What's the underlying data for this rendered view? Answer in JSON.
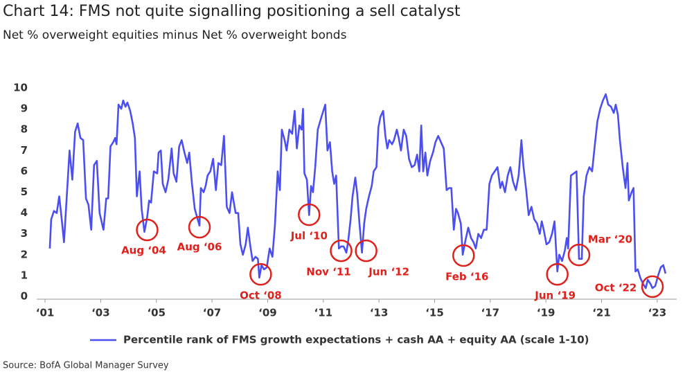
{
  "chart_data": {
    "type": "line",
    "title": "Chart 14: FMS not quite signalling positioning a sell catalyst",
    "subtitle": "Net % overweight equities minus Net % overweight bonds",
    "source": "Source: BofA Global Manager Survey",
    "xlim": [
      2000.7,
      2023.7
    ],
    "ylim": [
      0,
      10
    ],
    "yticks": [
      0,
      1,
      2,
      3,
      4,
      5,
      6,
      7,
      8,
      9,
      10
    ],
    "xticks": [
      {
        "value": 2001,
        "label": "‘01"
      },
      {
        "value": 2003,
        "label": "‘03"
      },
      {
        "value": 2005,
        "label": "‘05"
      },
      {
        "value": 2007,
        "label": "‘07"
      },
      {
        "value": 2009,
        "label": "‘09"
      },
      {
        "value": 2011,
        "label": "‘11"
      },
      {
        "value": 2013,
        "label": "‘13"
      },
      {
        "value": 2015,
        "label": "‘15"
      },
      {
        "value": 2017,
        "label": "‘17"
      },
      {
        "value": 2019,
        "label": "‘19"
      },
      {
        "value": 2021,
        "label": "‘21"
      },
      {
        "value": 2023,
        "label": "‘23"
      }
    ],
    "grid": false,
    "legend": "bottom",
    "x": [
      2001.17,
      2001.22,
      2001.32,
      2001.42,
      2001.51,
      2001.59,
      2001.68,
      2001.78,
      2001.88,
      2001.98,
      2002.08,
      2002.17,
      2002.27,
      2002.37,
      2002.47,
      2002.56,
      2002.66,
      2002.76,
      2002.86,
      2002.96,
      2003.1,
      2003.2,
      2003.27,
      2003.35,
      2003.45,
      2003.52,
      2003.57,
      2003.64,
      2003.74,
      2003.81,
      2003.89,
      2003.96,
      2004.06,
      2004.15,
      2004.23,
      2004.3,
      2004.4,
      2004.47,
      2004.57,
      2004.67,
      2004.74,
      2004.81,
      2004.91,
      2005.03,
      2005.08,
      2005.16,
      2005.23,
      2005.33,
      2005.43,
      2005.55,
      2005.62,
      2005.72,
      2005.82,
      2005.91,
      2006.01,
      2006.11,
      2006.18,
      2006.28,
      2006.38,
      2006.55,
      2006.6,
      2006.7,
      2006.77,
      2006.84,
      2006.94,
      2007.04,
      2007.14,
      2007.23,
      2007.33,
      2007.38,
      2007.43,
      2007.53,
      2007.63,
      2007.72,
      2007.85,
      2007.94,
      2008.02,
      2008.11,
      2008.21,
      2008.29,
      2008.38,
      2008.46,
      2008.56,
      2008.65,
      2008.7,
      2008.78,
      2008.87,
      2008.97,
      2009.07,
      2009.17,
      2009.26,
      2009.36,
      2009.44,
      2009.51,
      2009.61,
      2009.68,
      2009.78,
      2009.88,
      2009.97,
      2010.05,
      2010.14,
      2010.22,
      2010.27,
      2010.32,
      2010.41,
      2010.49,
      2010.56,
      2010.63,
      2010.71,
      2010.8,
      2010.93,
      2011.07,
      2011.15,
      2011.24,
      2011.32,
      2011.39,
      2011.46,
      2011.56,
      2011.64,
      2011.73,
      2011.83,
      2011.9,
      2011.98,
      2012.05,
      2012.15,
      2012.22,
      2012.3,
      2012.39,
      2012.47,
      2012.54,
      2012.64,
      2012.74,
      2012.81,
      2012.91,
      2012.98,
      2013.05,
      2013.15,
      2013.23,
      2013.3,
      2013.37,
      2013.47,
      2013.54,
      2013.64,
      2013.71,
      2013.79,
      2013.89,
      2013.98,
      2014.08,
      2014.18,
      2014.28,
      2014.37,
      2014.45,
      2014.52,
      2014.59,
      2014.67,
      2014.74,
      2014.84,
      2014.94,
      2015.03,
      2015.13,
      2015.23,
      2015.33,
      2015.43,
      2015.52,
      2015.6,
      2015.69,
      2015.77,
      2015.84,
      2015.94,
      2016.01,
      2016.11,
      2016.21,
      2016.31,
      2016.4,
      2016.48,
      2016.57,
      2016.67,
      2016.77,
      2016.87,
      2016.97,
      2017.06,
      2017.16,
      2017.26,
      2017.36,
      2017.43,
      2017.53,
      2017.63,
      2017.72,
      2017.82,
      2017.92,
      2018.02,
      2018.12,
      2018.19,
      2018.29,
      2018.38,
      2018.48,
      2018.58,
      2018.68,
      2018.78,
      2018.85,
      2018.92,
      2019.02,
      2019.12,
      2019.22,
      2019.31,
      2019.41,
      2019.48,
      2019.58,
      2019.68,
      2019.75,
      2019.8,
      2019.9,
      2020.0,
      2020.1,
      2020.19,
      2020.29,
      2020.36,
      2020.46,
      2020.56,
      2020.66,
      2020.76,
      2020.85,
      2020.95,
      2021.05,
      2021.15,
      2021.24,
      2021.34,
      2021.44,
      2021.51,
      2021.59,
      2021.66,
      2021.76,
      2021.86,
      2021.93,
      2021.98,
      2022.08,
      2022.15,
      2022.22,
      2022.3,
      2022.39,
      2022.49,
      2022.59,
      2022.66,
      2022.76,
      2022.83,
      2022.93,
      2023.03,
      2023.13,
      2023.22,
      2023.3
    ],
    "series": [
      {
        "name": "Percentile rank of FMS growth expectations + cash AA + equity AA (scale 1-10)",
        "color": "#4b4ef0",
        "values": [
          2.3,
          3.7,
          4.1,
          4.0,
          4.8,
          3.8,
          2.6,
          4.8,
          7.0,
          5.6,
          7.9,
          8.3,
          7.6,
          7.5,
          4.7,
          4.4,
          3.2,
          6.3,
          6.5,
          4.0,
          3.2,
          4.7,
          4.7,
          7.2,
          7.4,
          7.6,
          7.3,
          9.2,
          9.0,
          9.4,
          9.1,
          9.3,
          8.9,
          8.3,
          7.6,
          4.8,
          6.0,
          4.2,
          3.1,
          3.8,
          4.6,
          4.5,
          6.0,
          5.9,
          6.9,
          7.0,
          5.4,
          5.0,
          5.6,
          7.1,
          5.9,
          5.5,
          7.2,
          7.5,
          6.9,
          6.4,
          6.9,
          5.4,
          4.2,
          3.4,
          5.2,
          5.0,
          5.3,
          5.8,
          6.0,
          6.6,
          5.1,
          6.4,
          6.3,
          7.0,
          7.7,
          4.3,
          4.0,
          5.0,
          4.0,
          4.0,
          2.5,
          2.0,
          2.5,
          3.3,
          2.4,
          1.7,
          1.9,
          1.8,
          0.9,
          1.5,
          1.3,
          1.4,
          2.3,
          1.9,
          3.4,
          6.0,
          5.1,
          8.0,
          7.5,
          7.0,
          8.0,
          7.8,
          8.9,
          7.1,
          8.2,
          8.0,
          9.0,
          5.9,
          5.6,
          3.9,
          5.3,
          5.0,
          6.2,
          8.0,
          8.6,
          9.2,
          7.0,
          7.4,
          6.0,
          5.4,
          5.8,
          2.3,
          2.4,
          2.4,
          2.1,
          2.7,
          3.7,
          4.8,
          5.7,
          4.9,
          3.5,
          2.1,
          3.5,
          4.2,
          4.8,
          5.3,
          6.0,
          6.2,
          8.1,
          8.6,
          8.9,
          7.7,
          7.1,
          7.5,
          7.3,
          7.5,
          8.0,
          7.6,
          7.0,
          8.0,
          7.7,
          6.6,
          6.2,
          6.3,
          6.8,
          6.0,
          8.2,
          6.0,
          6.9,
          5.8,
          6.5,
          6.9,
          7.4,
          7.7,
          7.4,
          7.1,
          5.1,
          5.2,
          5.2,
          3.2,
          4.2,
          4.0,
          3.5,
          2.0,
          2.7,
          3.3,
          2.8,
          2.6,
          2.3,
          3.0,
          2.8,
          3.2,
          3.2,
          5.4,
          5.8,
          6.0,
          6.2,
          5.2,
          5.5,
          5.0,
          5.8,
          6.2,
          5.5,
          5.1,
          5.8,
          7.5,
          6.3,
          5.1,
          3.9,
          4.3,
          3.7,
          3.5,
          3.0,
          3.6,
          3.2,
          2.5,
          2.6,
          3.0,
          3.6,
          1.2,
          2.0,
          1.7,
          2.2,
          2.8,
          2.3,
          5.8,
          5.9,
          6.0,
          1.8,
          1.8,
          4.8,
          5.8,
          6.2,
          6.0,
          7.3,
          8.4,
          9.0,
          9.4,
          9.7,
          9.2,
          9.1,
          8.8,
          9.2,
          8.7,
          7.5,
          6.2,
          5.2,
          6.4,
          4.6,
          5.0,
          5.2,
          1.2,
          1.3,
          0.9,
          0.6,
          0.4,
          0.8,
          0.6,
          0.4,
          0.5,
          1.0,
          1.4,
          1.5,
          1.1
        ]
      }
    ],
    "annotations": [
      {
        "text": "Aug ‘04",
        "x": 2004.67,
        "y": 3.19,
        "color": "#e0201b"
      },
      {
        "text": "Aug ‘06",
        "x": 2006.55,
        "y": 3.32,
        "color": "#e0201b"
      },
      {
        "text": "Oct ‘08",
        "x": 2008.75,
        "y": 1.06,
        "color": "#e0201b"
      },
      {
        "text": "Jul ‘10",
        "x": 2010.49,
        "y": 3.92,
        "color": "#e0201b"
      },
      {
        "text": "Nov ‘11",
        "x": 2011.64,
        "y": 2.19,
        "color": "#e0201b"
      },
      {
        "text": "Jun ‘12",
        "x": 2012.54,
        "y": 2.19,
        "color": "#e0201b"
      },
      {
        "text": "Feb ‘16",
        "x": 2016.04,
        "y": 1.96,
        "color": "#e0201b"
      },
      {
        "text": "Jun ‘19",
        "x": 2019.41,
        "y": 1.06,
        "color": "#e0201b"
      },
      {
        "text": "Mar ‘20",
        "x": 2020.19,
        "y": 1.99,
        "color": "#e0201b"
      },
      {
        "text": "Oct ‘22",
        "x": 2022.83,
        "y": 0.47,
        "color": "#e0201b"
      }
    ]
  }
}
